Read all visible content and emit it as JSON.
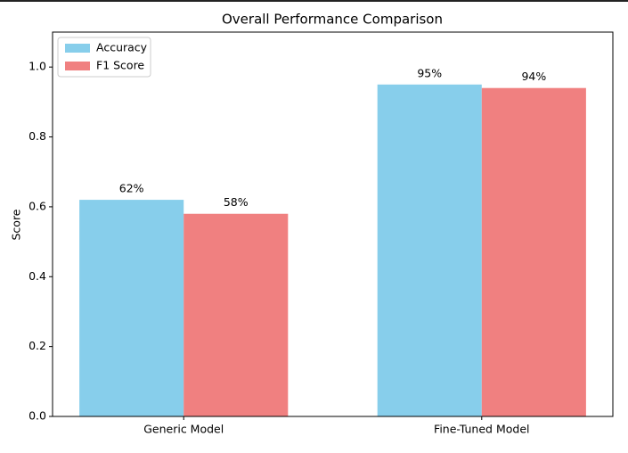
{
  "chart_data": {
    "type": "bar",
    "title": "Overall Performance Comparison",
    "y_label": "Score",
    "categories": [
      "Generic Model",
      "Fine-Tuned Model"
    ],
    "series": [
      {
        "name": "Accuracy",
        "color": "#87ceeb",
        "values": [
          0.62,
          0.95
        ],
        "value_labels": [
          "62%",
          "95%"
        ]
      },
      {
        "name": "F1 Score",
        "color": "#f08080",
        "values": [
          0.58,
          0.94
        ],
        "value_labels": [
          "58%",
          "94%"
        ]
      }
    ],
    "ylim": [
      0,
      1.1
    ],
    "yticks": [
      {
        "value": 0,
        "label": "0.0"
      },
      0.2,
      0.4,
      0.6,
      0.8,
      {
        "value": 1,
        "label": "1.0"
      }
    ],
    "legend": "upper left"
  }
}
